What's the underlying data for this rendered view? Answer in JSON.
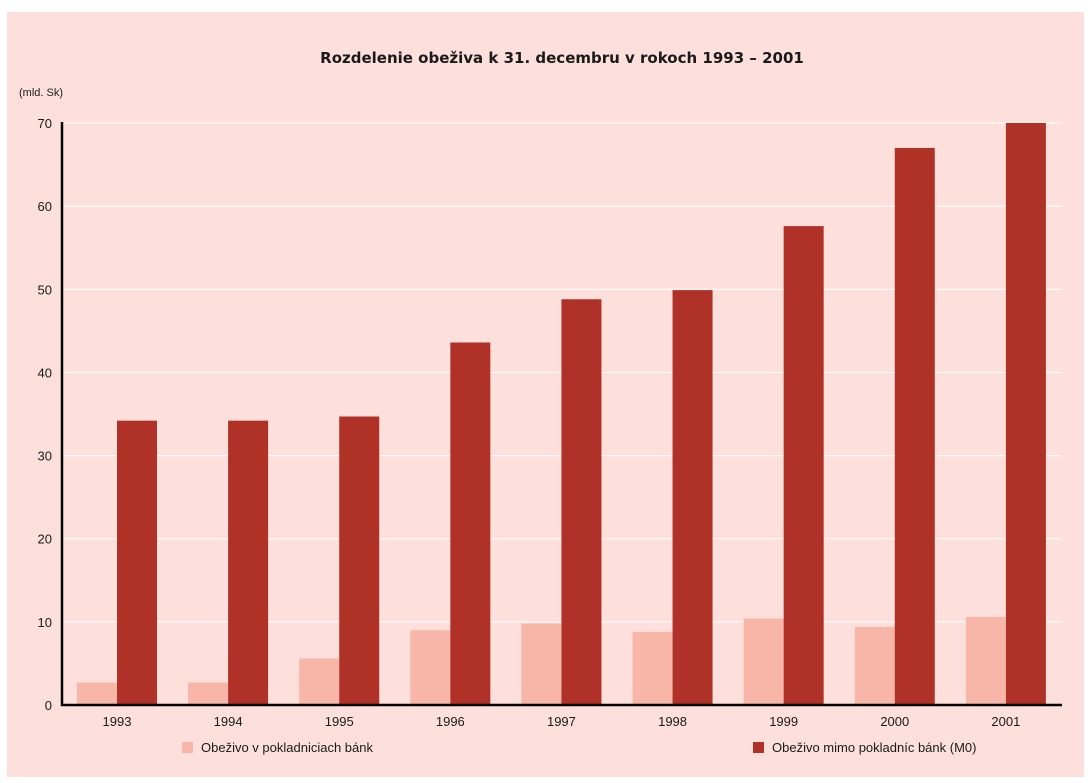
{
  "chart_data": {
    "type": "bar",
    "title": "Rozdelenie obeživa k 31. decembru v rokoch 1993 – 2001",
    "unit_label": "(mld. Sk)",
    "categories": [
      "1993",
      "1994",
      "1995",
      "1996",
      "1997",
      "1998",
      "1999",
      "2000",
      "2001"
    ],
    "series": [
      {
        "name": "Obeživo v pokladniciach bánk",
        "color": "#f7b6a8",
        "values": [
          2.7,
          2.7,
          5.6,
          9.0,
          9.8,
          8.8,
          10.4,
          9.4,
          10.6
        ]
      },
      {
        "name": "Obeživo mimo pokladníc bánk  (M0)",
        "color": "#b03127",
        "values": [
          34.2,
          34.2,
          34.7,
          43.6,
          48.8,
          49.9,
          57.6,
          67.0,
          70.0
        ]
      }
    ],
    "ylim": [
      0,
      70
    ],
    "yticks": [
      0,
      10,
      20,
      30,
      40,
      50,
      60,
      70
    ],
    "grid": true,
    "legend_position": "bottom"
  }
}
